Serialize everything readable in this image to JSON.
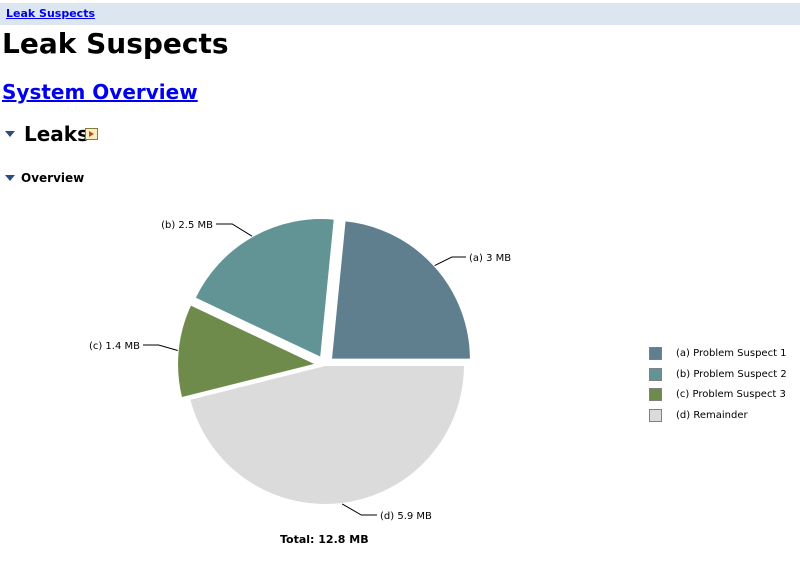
{
  "breadcrumb": {
    "label": "Leak Suspects"
  },
  "page": {
    "title": "Leak Suspects",
    "overview_link": "System Overview"
  },
  "sections": {
    "leaks": {
      "title": "Leaks",
      "expanded": true,
      "icon": "details-icon"
    },
    "overview": {
      "title": "Overview",
      "expanded": true
    }
  },
  "chart_data": {
    "type": "pie",
    "unit": "MB",
    "slices": [
      {
        "key": "(a)",
        "name": "Problem Suspect 1",
        "value": 3,
        "label": "3 MB",
        "color": "#5f7f8f",
        "exploded": true
      },
      {
        "key": "(b)",
        "name": "Problem Suspect 2",
        "value": 2.5,
        "label": "2.5 MB",
        "color": "#629395",
        "exploded": true
      },
      {
        "key": "(c)",
        "name": "Problem Suspect 3",
        "value": 1.4,
        "label": "1.4 MB",
        "color": "#6f8b4b",
        "exploded": true
      },
      {
        "key": "(d)",
        "name": "Remainder",
        "value": 5.9,
        "label": "5.9 MB",
        "color": "#dbdbdb",
        "exploded": false
      }
    ],
    "total_label": "Total: 12.8 MB",
    "legend_position": "right"
  }
}
